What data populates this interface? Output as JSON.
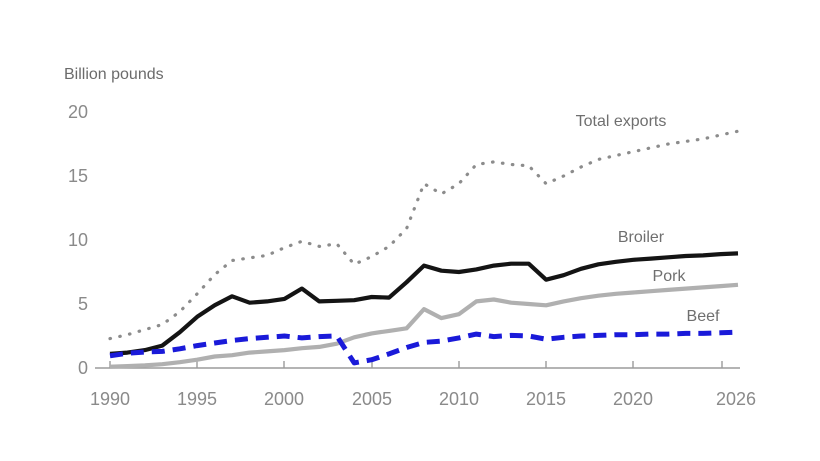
{
  "unit_label": "Billion pounds",
  "chart_data": {
    "type": "line",
    "title": "",
    "ylabel": "Billion pounds",
    "xlabel": "",
    "xlim": [
      1990,
      2026
    ],
    "ylim": [
      0,
      20
    ],
    "grid": false,
    "legend_position": "inline-labels-at-line-ends",
    "x_tick_labels": [
      "1990",
      "1995",
      "2000",
      "2005",
      "2010",
      "2015",
      "2020",
      "2026"
    ],
    "y_tick_labels": [
      "0",
      "5",
      "10",
      "15",
      "20"
    ],
    "x": [
      1990,
      1991,
      1992,
      1993,
      1994,
      1995,
      1996,
      1997,
      1998,
      1999,
      2000,
      2001,
      2002,
      2003,
      2004,
      2005,
      2006,
      2007,
      2008,
      2009,
      2010,
      2011,
      2012,
      2013,
      2014,
      2015,
      2016,
      2017,
      2018,
      2019,
      2020,
      2021,
      2022,
      2023,
      2024,
      2025,
      2026
    ],
    "series": [
      {
        "name": "Total exports",
        "style": "dotted",
        "color": "#8c8c8c",
        "values": [
          2.3,
          2.6,
          3.0,
          3.4,
          4.4,
          5.8,
          7.3,
          8.4,
          8.6,
          8.8,
          9.4,
          9.9,
          9.5,
          9.7,
          8.1,
          8.7,
          9.5,
          10.9,
          14.4,
          13.6,
          14.4,
          15.9,
          16.1,
          15.9,
          15.8,
          14.4,
          15.0,
          15.7,
          16.3,
          16.6,
          16.9,
          17.2,
          17.5,
          17.7,
          17.9,
          18.2,
          18.5
        ]
      },
      {
        "name": "Broiler",
        "style": "solid",
        "color": "#141414",
        "values": [
          1.1,
          1.2,
          1.4,
          1.75,
          2.8,
          4.0,
          4.9,
          5.6,
          5.1,
          5.2,
          5.4,
          6.2,
          5.2,
          5.25,
          5.3,
          5.55,
          5.5,
          6.7,
          8.0,
          7.6,
          7.5,
          7.7,
          8.0,
          8.15,
          8.15,
          6.9,
          7.25,
          7.75,
          8.1,
          8.3,
          8.45,
          8.55,
          8.65,
          8.75,
          8.8,
          8.9,
          8.95
        ]
      },
      {
        "name": "Pork",
        "style": "solid",
        "color": "#b0b0b0",
        "values": [
          0.1,
          0.15,
          0.2,
          0.3,
          0.45,
          0.65,
          0.9,
          1.0,
          1.2,
          1.3,
          1.4,
          1.55,
          1.65,
          1.9,
          2.4,
          2.7,
          2.9,
          3.1,
          4.6,
          3.9,
          4.2,
          5.2,
          5.35,
          5.1,
          5.0,
          4.9,
          5.2,
          5.45,
          5.65,
          5.8,
          5.9,
          6.0,
          6.1,
          6.2,
          6.3,
          6.4,
          6.5
        ]
      },
      {
        "name": "Beef",
        "style": "dashed",
        "color": "#1a1ad9",
        "values": [
          0.95,
          1.15,
          1.25,
          1.3,
          1.5,
          1.75,
          1.95,
          2.15,
          2.3,
          2.4,
          2.5,
          2.35,
          2.45,
          2.5,
          0.4,
          0.65,
          1.1,
          1.6,
          2.0,
          2.1,
          2.35,
          2.65,
          2.45,
          2.55,
          2.5,
          2.25,
          2.4,
          2.5,
          2.55,
          2.6,
          2.6,
          2.65,
          2.65,
          2.7,
          2.7,
          2.75,
          2.8
        ]
      }
    ]
  }
}
